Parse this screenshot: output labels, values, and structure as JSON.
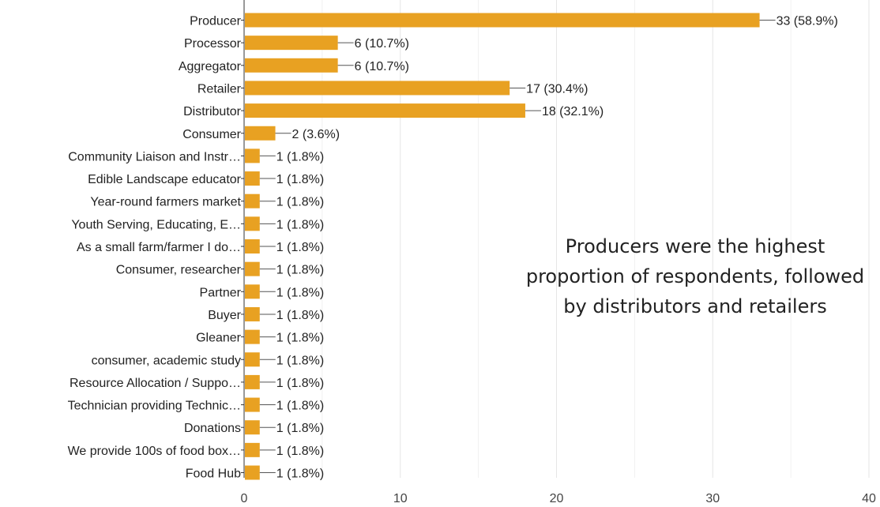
{
  "chart_data": {
    "type": "bar",
    "orientation": "horizontal",
    "categories": [
      "Producer",
      "Processor",
      "Aggregator",
      "Retailer",
      "Distributor",
      "Consumer",
      "Community Liaison and Instr…",
      "Edible Landscape educator",
      "Year-round farmers market",
      "Youth Serving, Educating, E…",
      "As a small farm/farmer I do…",
      "Consumer, researcher",
      "Partner",
      "Buyer",
      "Gleaner",
      "consumer, academic study",
      "Resource Allocation / Suppo…",
      "Technician providing Technic…",
      "Donations",
      "We provide 100s of food box…",
      "Food Hub"
    ],
    "values": [
      33,
      6,
      6,
      17,
      18,
      2,
      1,
      1,
      1,
      1,
      1,
      1,
      1,
      1,
      1,
      1,
      1,
      1,
      1,
      1,
      1
    ],
    "data_labels": [
      "33 (58.9%)",
      "6 (10.7%)",
      "6 (10.7%)",
      "17 (30.4%)",
      "18 (32.1%)",
      "2 (3.6%)",
      "1 (1.8%)",
      "1 (1.8%)",
      "1 (1.8%)",
      "1 (1.8%)",
      "1 (1.8%)",
      "1 (1.8%)",
      "1 (1.8%)",
      "1 (1.8%)",
      "1 (1.8%)",
      "1 (1.8%)",
      "1 (1.8%)",
      "1 (1.8%)",
      "1 (1.8%)",
      "1 (1.8%)",
      "1 (1.8%)"
    ],
    "xlim": [
      0,
      40
    ],
    "x_ticks": [
      0,
      10,
      20,
      30,
      40
    ],
    "title": "",
    "xlabel": "",
    "ylabel": "",
    "grid": "vertical",
    "bar_color": "#E8A122",
    "annotation": "Producers were the highest\nproportion of respondents, followed\nby distributors and retailers"
  }
}
